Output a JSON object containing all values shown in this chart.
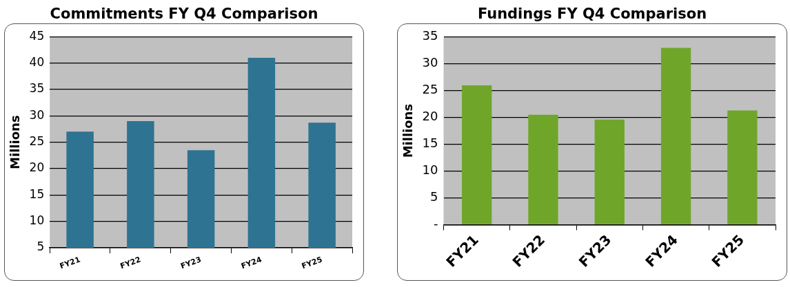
{
  "chart_data": [
    {
      "type": "bar",
      "title": "Commitments FY Q4 Comparison",
      "ylabel": "Millions",
      "categories": [
        "FY21",
        "FY22",
        "FY23",
        "FY24",
        "FY25"
      ],
      "values": [
        27,
        29,
        23.5,
        41,
        28.7
      ],
      "color": "#2e7391",
      "ylim": [
        5,
        45
      ],
      "yticks": [
        5,
        10,
        15,
        20,
        25,
        30,
        35,
        40,
        45
      ],
      "grid": "y"
    },
    {
      "type": "bar",
      "title": "Fundings FY Q4 Comparison",
      "ylabel": "Millions",
      "categories": [
        "FY21",
        "FY22",
        "FY23",
        "FY24",
        "FY25"
      ],
      "values": [
        26,
        20.5,
        19.6,
        33,
        21.3
      ],
      "color": "#6fa62a",
      "ylim": [
        0,
        35
      ],
      "yticks": [
        {
          "value": 0,
          "label": "-"
        },
        5,
        10,
        15,
        20,
        25,
        30,
        35
      ],
      "grid": "y"
    }
  ]
}
